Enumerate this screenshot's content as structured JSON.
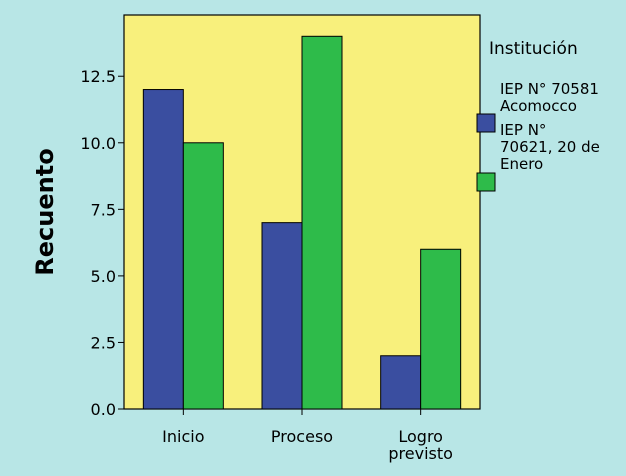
{
  "colors": {
    "background": "#b8e6e6",
    "plot_area": "#f8f07c",
    "series_1": "#3a4ea0",
    "series_2": "#2ebb4a"
  },
  "chart_data": {
    "type": "bar",
    "categories": [
      "Inicio",
      "Proceso",
      "Logro previsto"
    ],
    "category_labels": [
      [
        "Inicio"
      ],
      [
        "Proceso"
      ],
      [
        "Logro",
        "previsto"
      ]
    ],
    "series": [
      {
        "name": "IEP N° 70581 Acomocco",
        "values": [
          12,
          7,
          2
        ]
      },
      {
        "name": "IEP N° 70621, 20 de Enero",
        "values": [
          10,
          14,
          6
        ]
      }
    ],
    "ylabel": "Recuento",
    "xlabel": "",
    "ylim": [
      0,
      14.8
    ],
    "yticks": [
      0,
      2.5,
      5,
      7.5,
      10,
      12.5
    ],
    "ytick_labels": [
      "0.0",
      "2.5",
      "5.0",
      "7.5",
      "10.0",
      "12.5"
    ],
    "grid": false,
    "legend": {
      "title": "Institución",
      "placement": "right",
      "entries": [
        [
          "IEP N° 70581",
          "Acomocco"
        ],
        [
          "IEP N°",
          "70621, 20 de",
          "Enero"
        ]
      ]
    }
  }
}
